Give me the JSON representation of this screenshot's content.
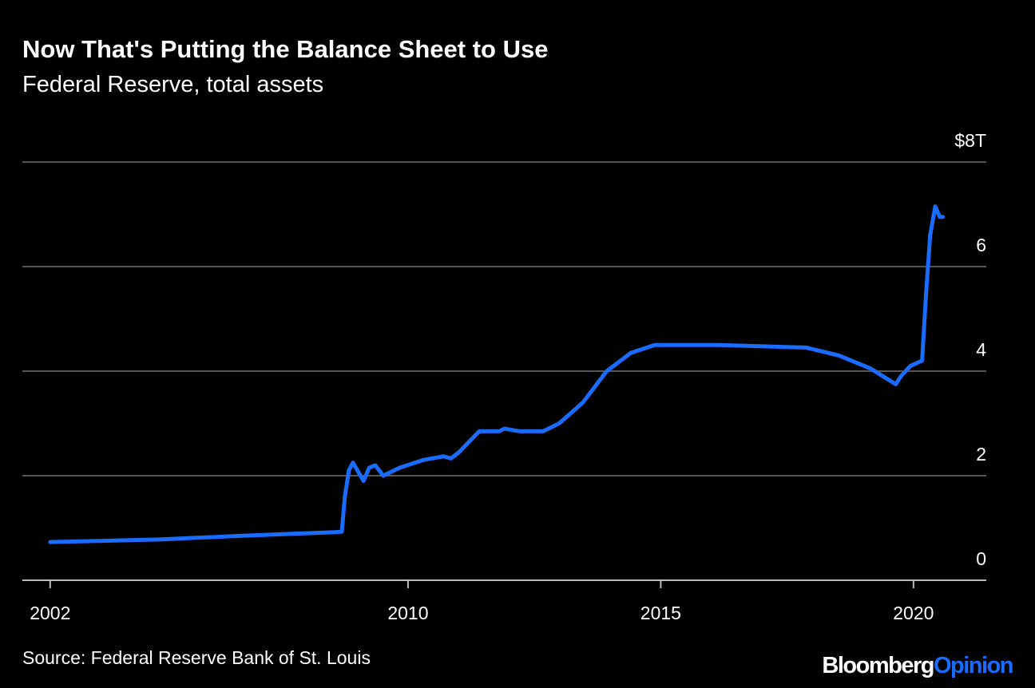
{
  "chart_data": {
    "type": "line",
    "title": "Now That's Putting the Balance Sheet to Use",
    "subtitle": "Federal Reserve, total assets",
    "source": "Source: Federal Reserve Bank of St. Louis",
    "brand": {
      "name": "Bloomberg",
      "suffix": "Opinion"
    },
    "x": [
      2002.92,
      2005.09,
      2006.67,
      2008.56,
      2008.69,
      2008.75,
      2008.83,
      2008.91,
      2009.0,
      2009.12,
      2009.23,
      2009.35,
      2009.51,
      2009.83,
      2010.3,
      2010.7,
      2010.85,
      2011.01,
      2011.41,
      2011.8,
      2011.91,
      2012.2,
      2012.67,
      2012.99,
      2013.46,
      2013.93,
      2014.41,
      2014.88,
      2016.15,
      2017.88,
      2018.52,
      2019.15,
      2019.65,
      2019.75,
      2019.94,
      2020.17,
      2020.25,
      2020.33,
      2020.43,
      2020.52,
      2020.58
    ],
    "series": [
      {
        "name": "Total assets",
        "color": "#1a6cff",
        "values": [
          0.73,
          0.78,
          0.85,
          0.92,
          0.93,
          1.6,
          2.1,
          2.25,
          2.1,
          1.9,
          2.15,
          2.2,
          2.0,
          2.15,
          2.3,
          2.37,
          2.33,
          2.45,
          2.85,
          2.85,
          2.9,
          2.85,
          2.85,
          3.0,
          3.4,
          4.0,
          4.35,
          4.5,
          4.5,
          4.45,
          4.3,
          4.05,
          3.75,
          3.9,
          4.1,
          4.2,
          5.5,
          6.6,
          7.15,
          6.95,
          6.95
        ]
      }
    ],
    "xlim": [
      2002.37,
      2021.44
    ],
    "xticks": [
      {
        "value": 2002.92,
        "label": "2002"
      },
      2010,
      2015,
      2020
    ],
    "ylim": [
      0,
      8
    ],
    "yticks": [
      0,
      2,
      4,
      6,
      {
        "value": 8,
        "label": "$8T"
      }
    ],
    "grid": true
  }
}
